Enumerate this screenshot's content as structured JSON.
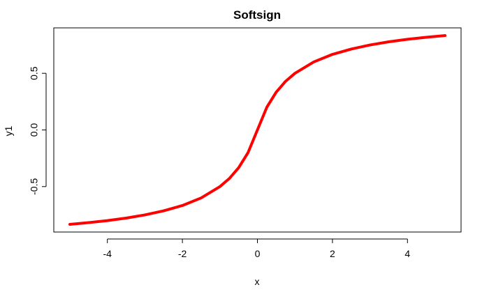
{
  "chart_data": {
    "type": "line",
    "title": "Softsign",
    "xlabel": "x",
    "ylabel": "y1",
    "xlim": [
      -5,
      5
    ],
    "ylim": [
      -0.8333,
      0.8333
    ],
    "x_ticks": [
      -4,
      -2,
      0,
      2,
      4
    ],
    "x_tick_labels": [
      "-4",
      "-2",
      "0",
      "2",
      "4"
    ],
    "y_ticks": [
      -0.5,
      0.0,
      0.5
    ],
    "y_tick_labels": [
      "-0.5",
      "0.0",
      "0.5"
    ],
    "grid": false,
    "series": [
      {
        "color": "#ff0000",
        "x": [
          -5,
          -4.5,
          -4,
          -3.5,
          -3,
          -2.5,
          -2,
          -1.5,
          -1,
          -0.75,
          -0.5,
          -0.25,
          0,
          0.25,
          0.5,
          0.75,
          1,
          1.5,
          2,
          2.5,
          3,
          3.5,
          4,
          4.5,
          5
        ],
        "y": [
          -0.833,
          -0.818,
          -0.8,
          -0.778,
          -0.75,
          -0.714,
          -0.667,
          -0.6,
          -0.5,
          -0.429,
          -0.333,
          -0.2,
          0.0,
          0.2,
          0.333,
          0.429,
          0.5,
          0.6,
          0.667,
          0.714,
          0.75,
          0.778,
          0.8,
          0.818,
          0.833
        ]
      }
    ]
  }
}
